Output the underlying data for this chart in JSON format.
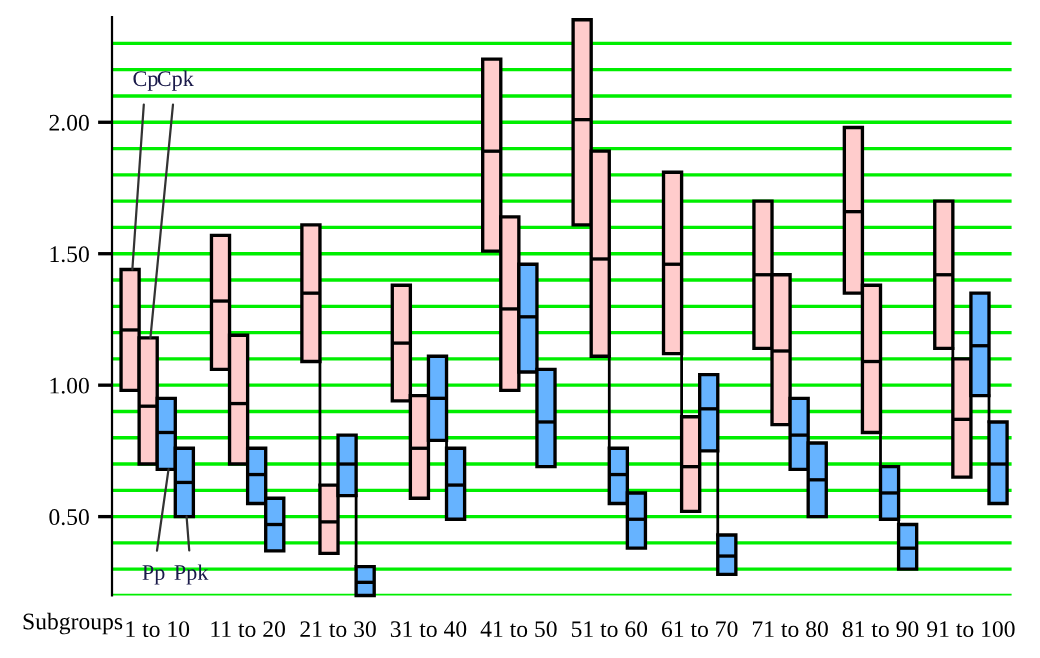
{
  "chart_data": {
    "type": "box",
    "xlabel": "Subgroups",
    "categories": [
      "1 to 10",
      "11 to 20",
      "21 to 30",
      "31 to 40",
      "41 to 50",
      "51 to 60",
      "61 to 70",
      "71 to 80",
      "81 to 90",
      "91 to 100"
    ],
    "series": [
      {
        "name": "Cp",
        "color": "#ffcccc",
        "boxes": [
          {
            "low": 0.98,
            "q1": 0.98,
            "median": 1.21,
            "q3": 1.44,
            "high": 1.44
          },
          {
            "low": 1.06,
            "q1": 1.06,
            "median": 1.32,
            "q3": 1.57,
            "high": 1.57
          },
          {
            "low": 1.09,
            "q1": 1.09,
            "median": 1.35,
            "q3": 1.61,
            "high": 1.61
          },
          {
            "low": 0.94,
            "q1": 0.94,
            "median": 1.16,
            "q3": 1.38,
            "high": 1.38
          },
          {
            "low": 1.51,
            "q1": 1.51,
            "median": 1.89,
            "q3": 2.24,
            "high": 2.24
          },
          {
            "low": 1.61,
            "q1": 1.61,
            "median": 2.01,
            "q3": 2.39,
            "high": 2.39
          },
          {
            "low": 1.12,
            "q1": 1.12,
            "median": 1.46,
            "q3": 1.81,
            "high": 1.81
          },
          {
            "low": 1.14,
            "q1": 1.14,
            "median": 1.42,
            "q3": 1.7,
            "high": 1.7
          },
          {
            "low": 1.35,
            "q1": 1.35,
            "median": 1.66,
            "q3": 1.98,
            "high": 1.98
          },
          {
            "low": 1.14,
            "q1": 1.14,
            "median": 1.42,
            "q3": 1.7,
            "high": 1.7
          }
        ]
      },
      {
        "name": "Cpk",
        "color": "#ffcccc",
        "boxes": [
          {
            "low": 0.7,
            "q1": 0.7,
            "median": 0.92,
            "q3": 1.18,
            "high": 1.18
          },
          {
            "low": 0.7,
            "q1": 0.7,
            "median": 0.93,
            "q3": 1.19,
            "high": 1.19
          },
          {
            "low": 0.36,
            "q1": 0.36,
            "median": 0.48,
            "q3": 0.62,
            "high": 0.62
          },
          {
            "low": 0.57,
            "q1": 0.57,
            "median": 0.76,
            "q3": 0.96,
            "high": 0.96
          },
          {
            "low": 0.98,
            "q1": 0.98,
            "median": 1.29,
            "q3": 1.64,
            "high": 1.64
          },
          {
            "low": 1.11,
            "q1": 1.11,
            "median": 1.48,
            "q3": 1.89,
            "high": 1.89
          },
          {
            "low": 0.52,
            "q1": 0.52,
            "median": 0.69,
            "q3": 0.88,
            "high": 0.88
          },
          {
            "low": 0.85,
            "q1": 0.85,
            "median": 1.13,
            "q3": 1.42,
            "high": 1.42
          },
          {
            "low": 0.82,
            "q1": 0.82,
            "median": 1.09,
            "q3": 1.38,
            "high": 1.38
          },
          {
            "low": 0.65,
            "q1": 0.65,
            "median": 0.87,
            "q3": 1.1,
            "high": 1.1
          }
        ]
      },
      {
        "name": "Pp",
        "color": "#66b3ff",
        "boxes": [
          {
            "low": 0.68,
            "q1": 0.68,
            "median": 0.82,
            "q3": 0.95,
            "high": 0.95
          },
          {
            "low": 0.55,
            "q1": 0.55,
            "median": 0.66,
            "q3": 0.76,
            "high": 0.76
          },
          {
            "low": 0.58,
            "q1": 0.58,
            "median": 0.7,
            "q3": 0.81,
            "high": 0.81
          },
          {
            "low": 0.79,
            "q1": 0.79,
            "median": 0.95,
            "q3": 1.11,
            "high": 1.11
          },
          {
            "low": 1.05,
            "q1": 1.05,
            "median": 1.26,
            "q3": 1.46,
            "high": 1.46
          },
          {
            "low": 0.55,
            "q1": 0.55,
            "median": 0.66,
            "q3": 0.76,
            "high": 0.76
          },
          {
            "low": 0.75,
            "q1": 0.75,
            "median": 0.91,
            "q3": 1.04,
            "high": 1.04
          },
          {
            "low": 0.68,
            "q1": 0.68,
            "median": 0.81,
            "q3": 0.95,
            "high": 0.95
          },
          {
            "low": 0.49,
            "q1": 0.49,
            "median": 0.59,
            "q3": 0.69,
            "high": 0.69
          },
          {
            "low": 0.96,
            "q1": 0.96,
            "median": 1.15,
            "q3": 1.35,
            "high": 1.35
          }
        ]
      },
      {
        "name": "Ppk",
        "color": "#66b3ff",
        "boxes": [
          {
            "low": 0.5,
            "q1": 0.5,
            "median": 0.63,
            "q3": 0.76,
            "high": 0.76
          },
          {
            "low": 0.37,
            "q1": 0.37,
            "median": 0.47,
            "q3": 0.57,
            "high": 0.57
          },
          {
            "low": 0.2,
            "q1": 0.2,
            "median": 0.25,
            "q3": 0.31,
            "high": 0.31
          },
          {
            "low": 0.49,
            "q1": 0.49,
            "median": 0.62,
            "q3": 0.76,
            "high": 0.76
          },
          {
            "low": 0.69,
            "q1": 0.69,
            "median": 0.86,
            "q3": 1.06,
            "high": 1.06
          },
          {
            "low": 0.38,
            "q1": 0.38,
            "median": 0.49,
            "q3": 0.59,
            "high": 0.59
          },
          {
            "low": 0.28,
            "q1": 0.28,
            "median": 0.35,
            "q3": 0.43,
            "high": 0.43
          },
          {
            "low": 0.5,
            "q1": 0.5,
            "median": 0.64,
            "q3": 0.78,
            "high": 0.78
          },
          {
            "low": 0.3,
            "q1": 0.3,
            "median": 0.38,
            "q3": 0.47,
            "high": 0.47
          },
          {
            "low": 0.55,
            "q1": 0.55,
            "median": 0.7,
            "q3": 0.86,
            "high": 0.86
          }
        ]
      }
    ],
    "ylim": [
      0.2,
      2.4
    ],
    "yticks": [
      {
        "value": 0.2,
        "label": null
      },
      {
        "value": 0.3,
        "label": null
      },
      {
        "value": 0.4,
        "label": null
      },
      {
        "value": 0.5,
        "label": "0.50"
      },
      {
        "value": 0.6,
        "label": null
      },
      {
        "value": 0.7,
        "label": null
      },
      {
        "value": 0.8,
        "label": null
      },
      {
        "value": 0.9,
        "label": null
      },
      {
        "value": 1.0,
        "label": "1.00"
      },
      {
        "value": 1.1,
        "label": null
      },
      {
        "value": 1.2,
        "label": null
      },
      {
        "value": 1.3,
        "label": null
      },
      {
        "value": 1.4,
        "label": null
      },
      {
        "value": 1.5,
        "label": "1.50"
      },
      {
        "value": 1.6,
        "label": null
      },
      {
        "value": 1.7,
        "label": null
      },
      {
        "value": 1.8,
        "label": null
      },
      {
        "value": 1.9,
        "label": null
      },
      {
        "value": 2.0,
        "label": "2.00"
      },
      {
        "value": 2.1,
        "label": null
      },
      {
        "value": 2.2,
        "label": null
      },
      {
        "value": 2.3,
        "label": null
      }
    ],
    "grid": "y",
    "legend": false
  }
}
